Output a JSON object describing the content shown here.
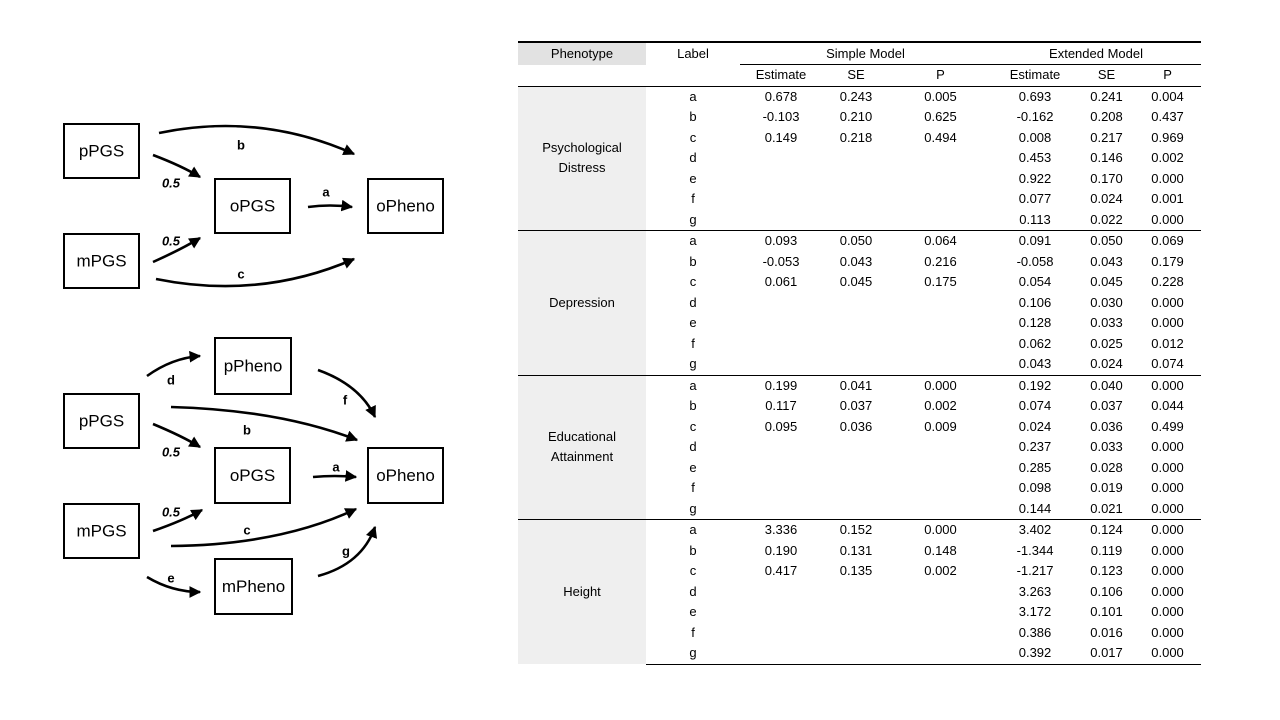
{
  "diagram_top": {
    "nodes": {
      "pPGS": "pPGS",
      "mPGS": "mPGS",
      "oPGS": "oPGS",
      "oPheno": "oPheno"
    },
    "labels": {
      "a": "a",
      "b": "b",
      "c": "c",
      "p_half": "0.5",
      "m_half": "0.5"
    }
  },
  "diagram_bottom": {
    "nodes": {
      "pPheno": "pPheno",
      "pPGS": "pPGS",
      "oPGS": "oPGS",
      "oPheno": "oPheno",
      "mPGS": "mPGS",
      "mPheno": "mPheno"
    },
    "labels": {
      "a": "a",
      "b": "b",
      "c": "c",
      "d": "d",
      "e": "e",
      "f": "f",
      "g": "g",
      "p_half": "0.5",
      "m_half": "0.5"
    }
  },
  "table": {
    "header": {
      "phenotype": "Phenotype",
      "label": "Label",
      "simple_model": "Simple Model",
      "extended_model": "Extended Model",
      "estimate": "Estimate",
      "se": "SE",
      "p": "P"
    },
    "sections": [
      {
        "phenotype": "Psychological Distress",
        "rows": [
          {
            "label": "a",
            "s_est": "0.678",
            "s_se": "0.243",
            "s_p": "0.005",
            "e_est": "0.693",
            "e_se": "0.241",
            "e_p": "0.004"
          },
          {
            "label": "b",
            "s_est": "-0.103",
            "s_se": "0.210",
            "s_p": "0.625",
            "e_est": "-0.162",
            "e_se": "0.208",
            "e_p": "0.437"
          },
          {
            "label": "c",
            "s_est": "0.149",
            "s_se": "0.218",
            "s_p": "0.494",
            "e_est": "0.008",
            "e_se": "0.217",
            "e_p": "0.969"
          },
          {
            "label": "d",
            "s_est": "",
            "s_se": "",
            "s_p": "",
            "e_est": "0.453",
            "e_se": "0.146",
            "e_p": "0.002"
          },
          {
            "label": "e",
            "s_est": "",
            "s_se": "",
            "s_p": "",
            "e_est": "0.922",
            "e_se": "0.170",
            "e_p": "0.000"
          },
          {
            "label": "f",
            "s_est": "",
            "s_se": "",
            "s_p": "",
            "e_est": "0.077",
            "e_se": "0.024",
            "e_p": "0.001"
          },
          {
            "label": "g",
            "s_est": "",
            "s_se": "",
            "s_p": "",
            "e_est": "0.113",
            "e_se": "0.022",
            "e_p": "0.000"
          }
        ]
      },
      {
        "phenotype": "Depression",
        "rows": [
          {
            "label": "a",
            "s_est": "0.093",
            "s_se": "0.050",
            "s_p": "0.064",
            "e_est": "0.091",
            "e_se": "0.050",
            "e_p": "0.069"
          },
          {
            "label": "b",
            "s_est": "-0.053",
            "s_se": "0.043",
            "s_p": "0.216",
            "e_est": "-0.058",
            "e_se": "0.043",
            "e_p": "0.179"
          },
          {
            "label": "c",
            "s_est": "0.061",
            "s_se": "0.045",
            "s_p": "0.175",
            "e_est": "0.054",
            "e_se": "0.045",
            "e_p": "0.228"
          },
          {
            "label": "d",
            "s_est": "",
            "s_se": "",
            "s_p": "",
            "e_est": "0.106",
            "e_se": "0.030",
            "e_p": "0.000"
          },
          {
            "label": "e",
            "s_est": "",
            "s_se": "",
            "s_p": "",
            "e_est": "0.128",
            "e_se": "0.033",
            "e_p": "0.000"
          },
          {
            "label": "f",
            "s_est": "",
            "s_se": "",
            "s_p": "",
            "e_est": "0.062",
            "e_se": "0.025",
            "e_p": "0.012"
          },
          {
            "label": "g",
            "s_est": "",
            "s_se": "",
            "s_p": "",
            "e_est": "0.043",
            "e_se": "0.024",
            "e_p": "0.074"
          }
        ]
      },
      {
        "phenotype": "Educational Attainment",
        "rows": [
          {
            "label": "a",
            "s_est": "0.199",
            "s_se": "0.041",
            "s_p": "0.000",
            "e_est": "0.192",
            "e_se": "0.040",
            "e_p": "0.000"
          },
          {
            "label": "b",
            "s_est": "0.117",
            "s_se": "0.037",
            "s_p": "0.002",
            "e_est": "0.074",
            "e_se": "0.037",
            "e_p": "0.044"
          },
          {
            "label": "c",
            "s_est": "0.095",
            "s_se": "0.036",
            "s_p": "0.009",
            "e_est": "0.024",
            "e_se": "0.036",
            "e_p": "0.499"
          },
          {
            "label": "d",
            "s_est": "",
            "s_se": "",
            "s_p": "",
            "e_est": "0.237",
            "e_se": "0.033",
            "e_p": "0.000"
          },
          {
            "label": "e",
            "s_est": "",
            "s_se": "",
            "s_p": "",
            "e_est": "0.285",
            "e_se": "0.028",
            "e_p": "0.000"
          },
          {
            "label": "f",
            "s_est": "",
            "s_se": "",
            "s_p": "",
            "e_est": "0.098",
            "e_se": "0.019",
            "e_p": "0.000"
          },
          {
            "label": "g",
            "s_est": "",
            "s_se": "",
            "s_p": "",
            "e_est": "0.144",
            "e_se": "0.021",
            "e_p": "0.000"
          }
        ]
      },
      {
        "phenotype": "Height",
        "rows": [
          {
            "label": "a",
            "s_est": "3.336",
            "s_se": "0.152",
            "s_p": "0.000",
            "e_est": "3.402",
            "e_se": "0.124",
            "e_p": "0.000"
          },
          {
            "label": "b",
            "s_est": "0.190",
            "s_se": "0.131",
            "s_p": "0.148",
            "e_est": "-1.344",
            "e_se": "0.119",
            "e_p": "0.000"
          },
          {
            "label": "c",
            "s_est": "0.417",
            "s_se": "0.135",
            "s_p": "0.002",
            "e_est": "-1.217",
            "e_se": "0.123",
            "e_p": "0.000"
          },
          {
            "label": "d",
            "s_est": "",
            "s_se": "",
            "s_p": "",
            "e_est": "3.263",
            "e_se": "0.106",
            "e_p": "0.000"
          },
          {
            "label": "e",
            "s_est": "",
            "s_se": "",
            "s_p": "",
            "e_est": "3.172",
            "e_se": "0.101",
            "e_p": "0.000"
          },
          {
            "label": "f",
            "s_est": "",
            "s_se": "",
            "s_p": "",
            "e_est": "0.386",
            "e_se": "0.016",
            "e_p": "0.000"
          },
          {
            "label": "g",
            "s_est": "",
            "s_se": "",
            "s_p": "",
            "e_est": "0.392",
            "e_se": "0.017",
            "e_p": "0.000"
          }
        ]
      }
    ]
  }
}
